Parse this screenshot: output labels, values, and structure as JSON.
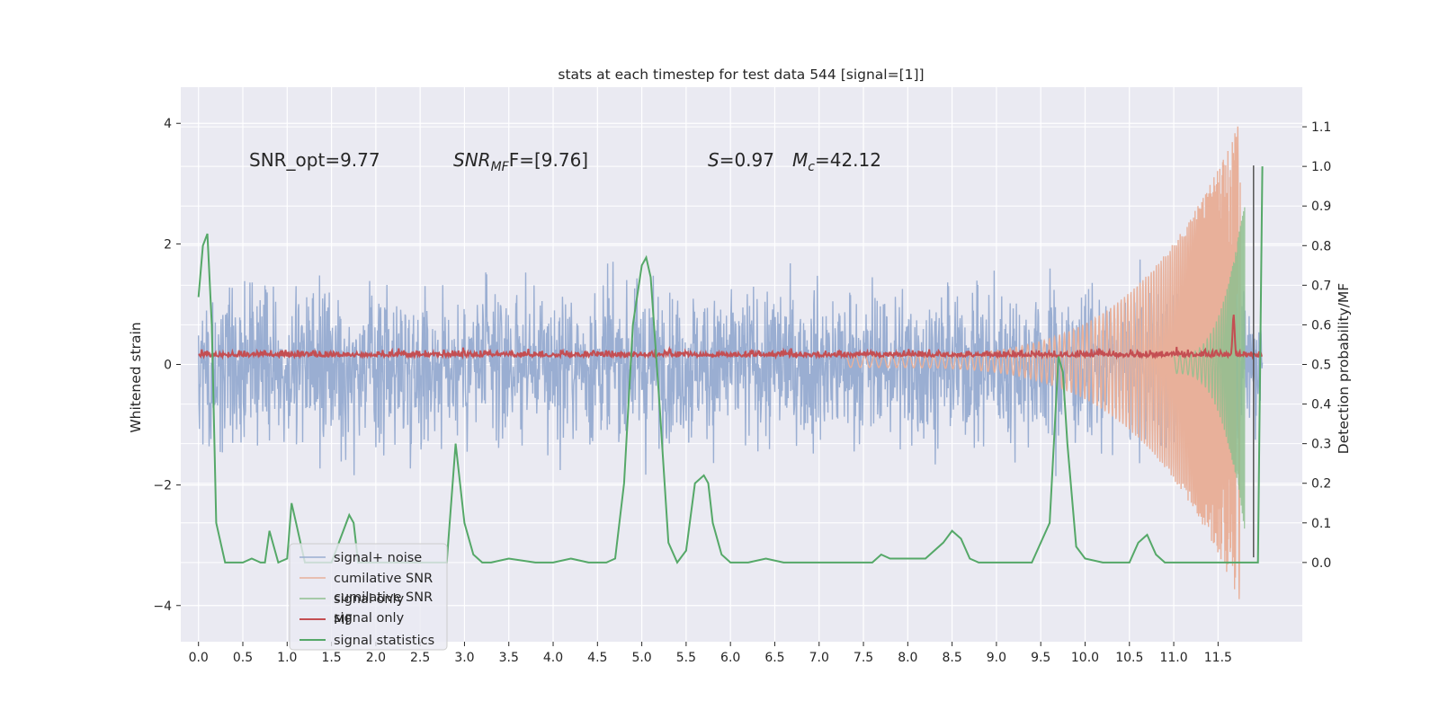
{
  "chart_data": {
    "type": "line",
    "title": "stats at each timestep for test data 544 [signal=[1]]",
    "ylabel_left": "Whitened strain",
    "ylabel_right": "Detection probability/MF",
    "xlim": [
      -0.2,
      12.45
    ],
    "ylim_left": [
      -4.6,
      4.6
    ],
    "ylim_right": [
      -0.2,
      1.2
    ],
    "x_ticks": [
      "0.0",
      "0.5",
      "1.0",
      "1.5",
      "2.0",
      "2.5",
      "3.0",
      "3.5",
      "4.0",
      "4.5",
      "5.0",
      "5.5",
      "6.0",
      "6.5",
      "7.0",
      "7.5",
      "8.0",
      "8.5",
      "9.0",
      "9.5",
      "10.0",
      "10.5",
      "11.0",
      "11.5"
    ],
    "y_ticks_left": [
      "−4",
      "−2",
      "0",
      "2",
      "4"
    ],
    "y_ticks_right": [
      "0.0",
      "0.1",
      "0.2",
      "0.3",
      "0.4",
      "0.5",
      "0.6",
      "0.7",
      "0.8",
      "0.9",
      "1.0",
      "1.1"
    ],
    "grid": true,
    "legend_position": "lower-left",
    "legend_ghost_entries": [
      "cumilative SNR",
      "signal only"
    ],
    "annotations": {
      "snr_opt": "SNR_opt=9.77",
      "snr_mf_label": "SNR",
      "snr_mf_sub": "MF",
      "snr_mf_value": "F=[9.76]",
      "s_label": "S",
      "s_value": "=0.97",
      "mc_label": "M",
      "mc_sub": "c",
      "mc_value": "=42.12"
    },
    "series": [
      {
        "name": "signal+ noise",
        "color": "#9aaed2",
        "axis": "left",
        "x_range": [
          0,
          12.0
        ],
        "approx_amplitude": 2.0
      },
      {
        "name": "cumilative SNR",
        "color": "#e8b09a",
        "axis": "left",
        "x_range": [
          7.3,
          11.75
        ],
        "approx_peak": 4.1
      },
      {
        "name": "signal only",
        "color": "#8fbf8f",
        "axis": "left",
        "x_range": [
          11.0,
          11.8
        ]
      },
      {
        "name": "MF",
        "color": "#c44e52",
        "axis": "left",
        "x_range": [
          0,
          12.0
        ],
        "approx_mean": 0.15
      },
      {
        "name": "signal statistics",
        "color": "#55a868",
        "axis": "right",
        "x": [
          0.0,
          0.05,
          0.1,
          0.15,
          0.2,
          0.3,
          0.4,
          0.5,
          0.6,
          0.7,
          0.75,
          0.8,
          0.9,
          1.0,
          1.05,
          1.1,
          1.2,
          1.3,
          1.4,
          1.5,
          1.6,
          1.7,
          1.75,
          1.8,
          1.9,
          2.0,
          2.2,
          2.4,
          2.6,
          2.8,
          2.9,
          3.0,
          3.1,
          3.2,
          3.3,
          3.5,
          3.8,
          4.0,
          4.2,
          4.4,
          4.6,
          4.7,
          4.8,
          4.9,
          5.0,
          5.05,
          5.1,
          5.2,
          5.3,
          5.4,
          5.5,
          5.6,
          5.7,
          5.75,
          5.8,
          5.9,
          6.0,
          6.2,
          6.4,
          6.6,
          6.8,
          7.0,
          7.2,
          7.4,
          7.6,
          7.7,
          7.8,
          8.0,
          8.2,
          8.4,
          8.5,
          8.6,
          8.7,
          8.8,
          9.0,
          9.2,
          9.4,
          9.6,
          9.7,
          9.75,
          9.8,
          9.9,
          10.0,
          10.2,
          10.4,
          10.5,
          10.6,
          10.7,
          10.8,
          10.9,
          11.0,
          11.2,
          11.4,
          11.6,
          11.8,
          11.9,
          11.95,
          12.0
        ],
        "y": [
          0.67,
          0.8,
          0.83,
          0.6,
          0.1,
          0.0,
          0.0,
          0.0,
          0.01,
          0.0,
          0.0,
          0.08,
          0.0,
          0.01,
          0.15,
          0.1,
          0.0,
          0.0,
          0.0,
          0.0,
          0.06,
          0.12,
          0.1,
          0.0,
          0.0,
          0.0,
          0.0,
          0.0,
          0.0,
          0.0,
          0.3,
          0.1,
          0.02,
          0.0,
          0.0,
          0.01,
          0.0,
          0.0,
          0.01,
          0.0,
          0.0,
          0.01,
          0.2,
          0.6,
          0.75,
          0.77,
          0.72,
          0.4,
          0.05,
          0.0,
          0.03,
          0.2,
          0.22,
          0.2,
          0.1,
          0.02,
          0.0,
          0.0,
          0.01,
          0.0,
          0.0,
          0.0,
          0.0,
          0.0,
          0.0,
          0.02,
          0.01,
          0.01,
          0.01,
          0.05,
          0.08,
          0.06,
          0.01,
          0.0,
          0.0,
          0.0,
          0.0,
          0.1,
          0.52,
          0.48,
          0.3,
          0.04,
          0.01,
          0.0,
          0.0,
          0.0,
          0.05,
          0.07,
          0.02,
          0.0,
          0.0,
          0.0,
          0.0,
          0.0,
          0.0,
          0.0,
          0.0,
          1.0
        ]
      }
    ]
  }
}
